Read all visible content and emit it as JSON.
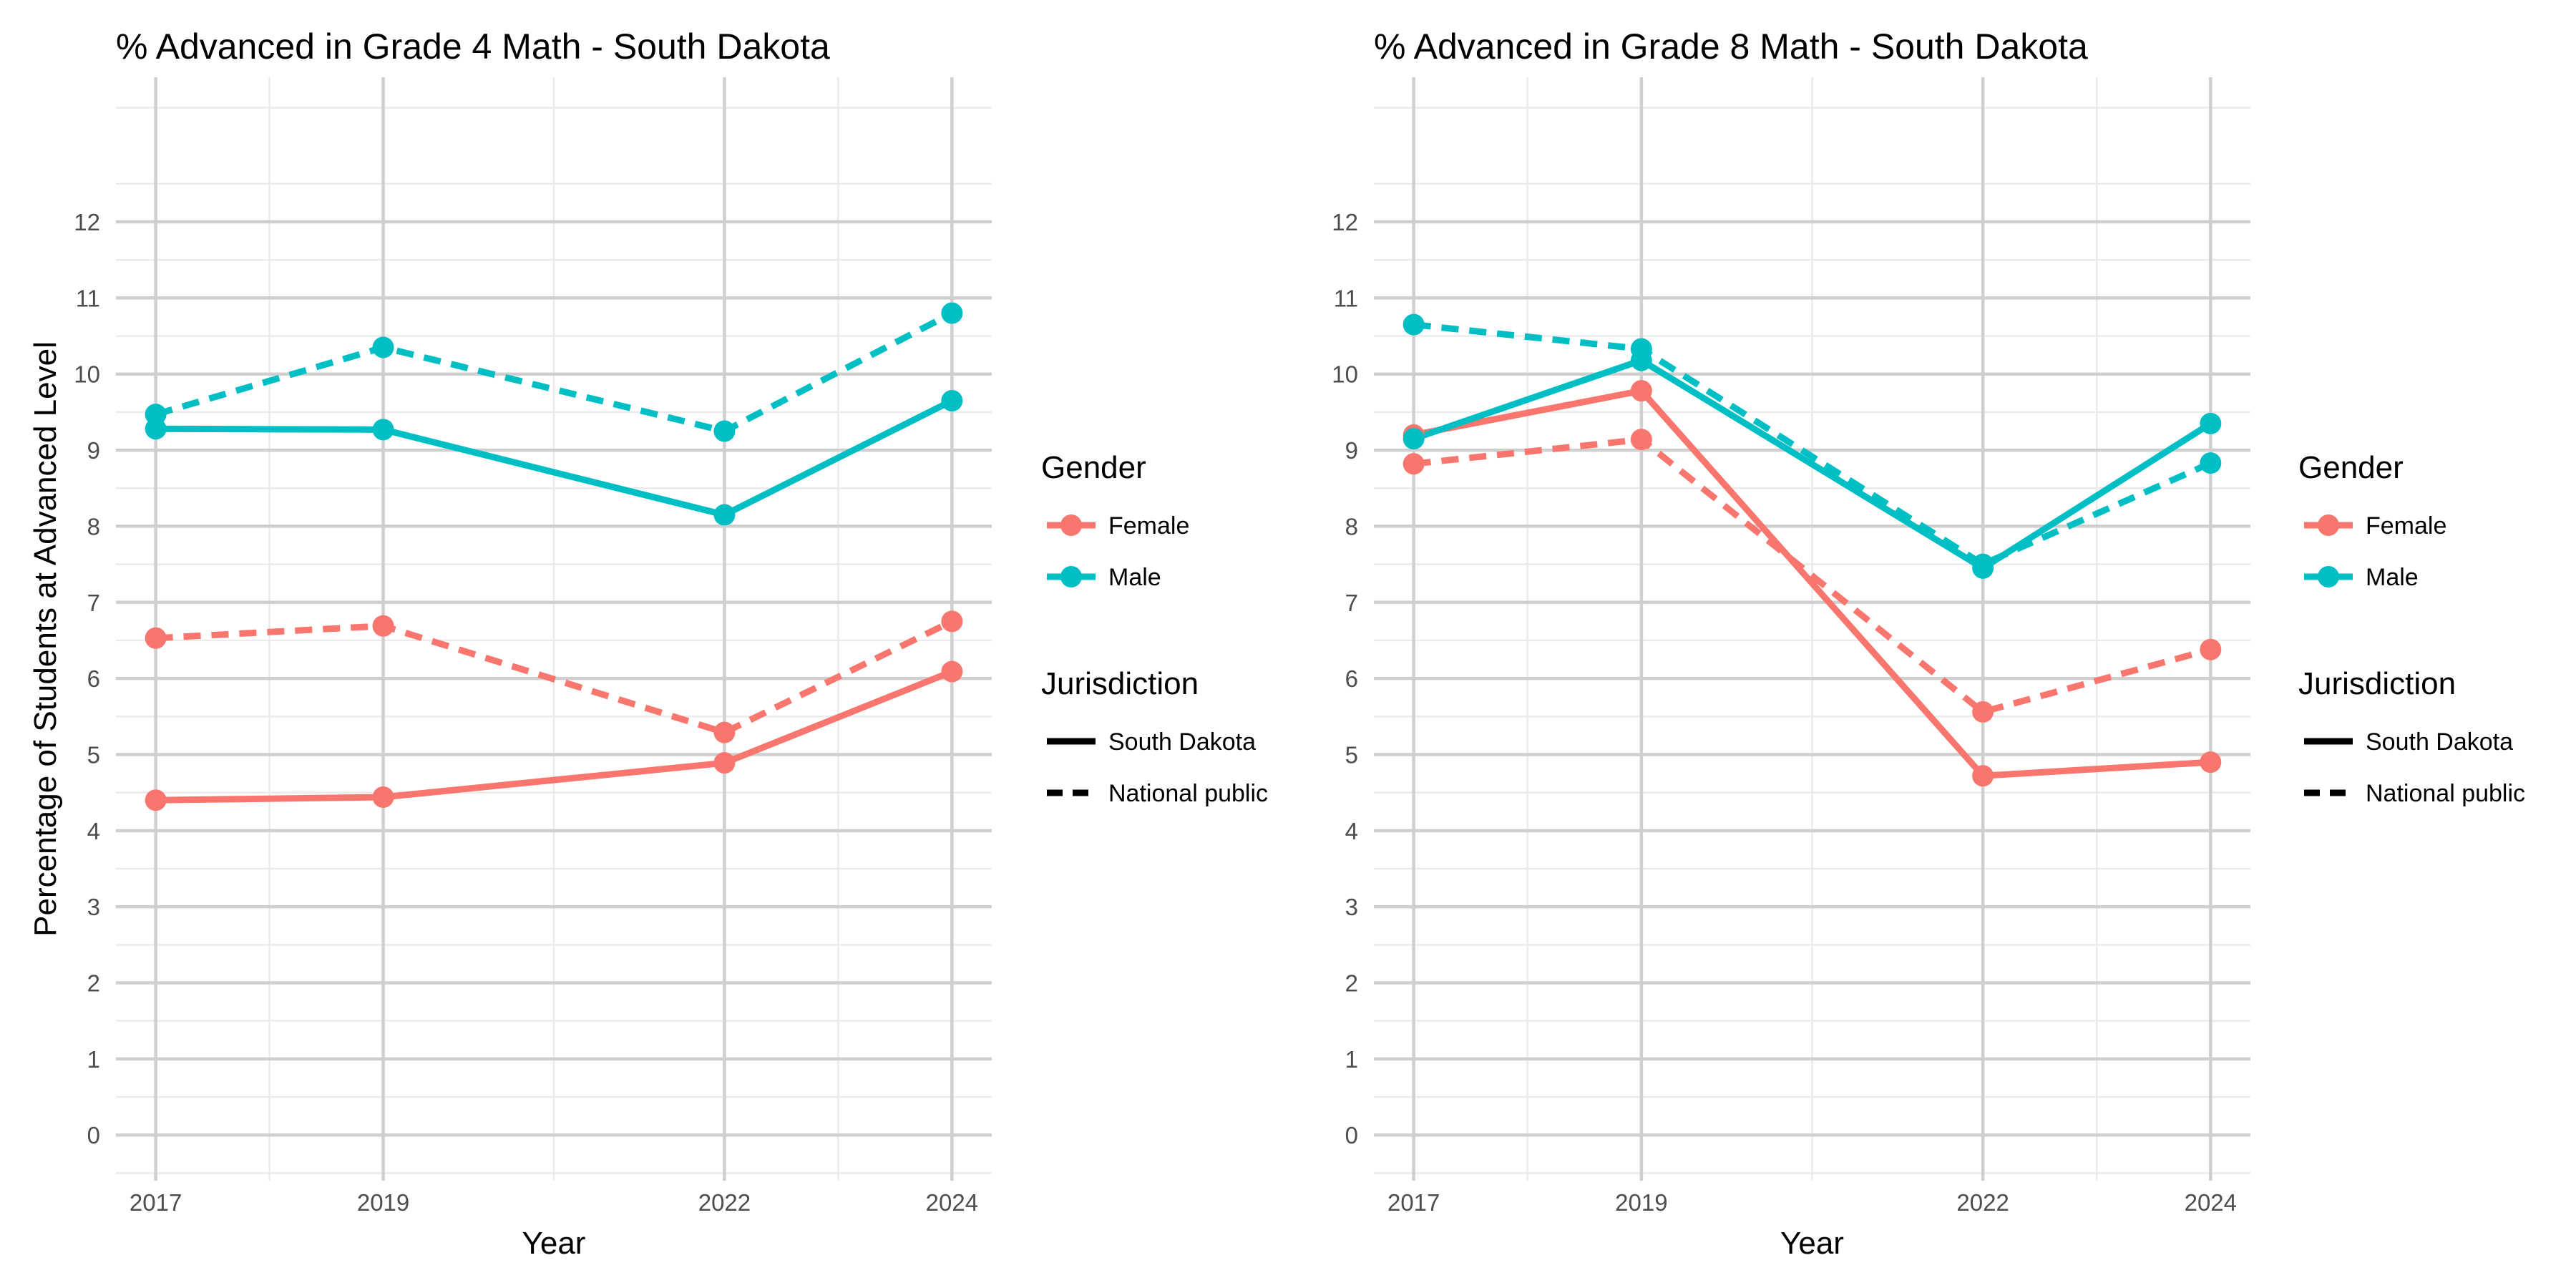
{
  "colors": {
    "Female": "#F8766D",
    "Male": "#00BFC4"
  },
  "legend": {
    "gender_title": "Gender",
    "gender_items": [
      "Female",
      "Male"
    ],
    "jurisdiction_title": "Jurisdiction",
    "jurisdiction_items": [
      {
        "label": "South Dakota",
        "linetype": "solid"
      },
      {
        "label": "National public",
        "linetype": "dashed"
      }
    ]
  },
  "chart_data": [
    {
      "type": "line",
      "title": "% Advanced in Grade 4 Math - South Dakota",
      "xlabel": "Year",
      "ylabel": "Percentage of Students at Advanced Level",
      "x_ticks": [
        2017,
        2019,
        2022,
        2024
      ],
      "y_ticks": [
        0,
        1,
        2,
        3,
        4,
        5,
        6,
        7,
        8,
        9,
        10,
        11,
        12
      ],
      "xlim": [
        2016.65,
        2024.35
      ],
      "ylim": [
        -0.6,
        13.9
      ],
      "grid": true,
      "series": [
        {
          "gender": "Female",
          "jurisdiction": "South Dakota",
          "x": [
            2017,
            2019,
            2022,
            2024
          ],
          "values": [
            4.4,
            4.44,
            4.89,
            6.09
          ]
        },
        {
          "gender": "Female",
          "jurisdiction": "National public",
          "x": [
            2017,
            2019,
            2022,
            2024
          ],
          "values": [
            6.53,
            6.69,
            5.29,
            6.75
          ]
        },
        {
          "gender": "Male",
          "jurisdiction": "South Dakota",
          "x": [
            2017,
            2019,
            2022,
            2024
          ],
          "values": [
            9.28,
            9.27,
            8.15,
            9.65
          ]
        },
        {
          "gender": "Male",
          "jurisdiction": "National public",
          "x": [
            2017,
            2019,
            2022,
            2024
          ],
          "values": [
            9.47,
            10.35,
            9.25,
            10.8
          ]
        }
      ]
    },
    {
      "type": "line",
      "title": "% Advanced in Grade 8 Math - South Dakota",
      "xlabel": "Year",
      "ylabel": "",
      "x_ticks": [
        2017,
        2019,
        2022,
        2024
      ],
      "y_ticks": [
        0,
        1,
        2,
        3,
        4,
        5,
        6,
        7,
        8,
        9,
        10,
        11,
        12
      ],
      "xlim": [
        2016.65,
        2024.35
      ],
      "ylim": [
        -0.6,
        13.9
      ],
      "grid": true,
      "series": [
        {
          "gender": "Female",
          "jurisdiction": "South Dakota",
          "x": [
            2017,
            2019,
            2022,
            2024
          ],
          "values": [
            9.2,
            9.78,
            4.72,
            4.9
          ]
        },
        {
          "gender": "Female",
          "jurisdiction": "National public",
          "x": [
            2017,
            2019,
            2022,
            2024
          ],
          "values": [
            8.82,
            9.14,
            5.56,
            6.38
          ]
        },
        {
          "gender": "Male",
          "jurisdiction": "South Dakota",
          "x": [
            2017,
            2019,
            2022,
            2024
          ],
          "values": [
            9.15,
            10.18,
            7.45,
            9.35
          ]
        },
        {
          "gender": "Male",
          "jurisdiction": "National public",
          "x": [
            2017,
            2019,
            2022,
            2024
          ],
          "values": [
            10.65,
            10.33,
            7.5,
            8.83
          ]
        }
      ]
    }
  ]
}
